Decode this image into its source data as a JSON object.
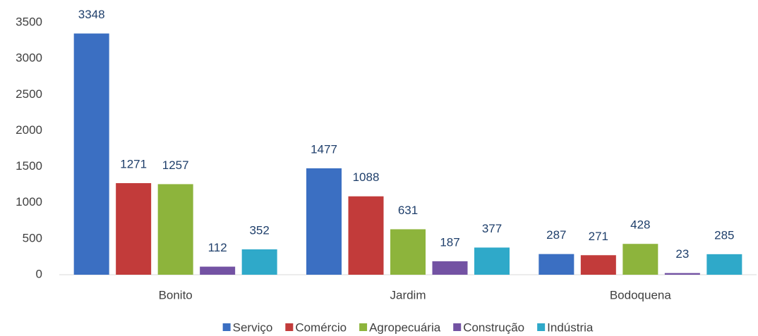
{
  "chart_data": {
    "type": "bar",
    "categories": [
      "Bonito",
      "Jardim",
      "Bodoquena"
    ],
    "series": [
      {
        "name": "Serviço",
        "color": "#3b6fc2",
        "values": [
          3348,
          1477,
          287
        ]
      },
      {
        "name": "Comércio",
        "color": "#c23b3a",
        "values": [
          1271,
          1088,
          271
        ]
      },
      {
        "name": "Agropecuária",
        "color": "#8db43c",
        "values": [
          1257,
          631,
          428
        ]
      },
      {
        "name": "Construção",
        "color": "#7352a3",
        "values": [
          112,
          187,
          23
        ]
      },
      {
        "name": "Indústria",
        "color": "#2fa9c9",
        "values": [
          352,
          377,
          285
        ]
      }
    ],
    "ylim": [
      0,
      3500
    ],
    "yticks": [
      0,
      500,
      1000,
      1500,
      2000,
      2500,
      3000,
      3500
    ],
    "grid": false,
    "legend": "bottom"
  }
}
